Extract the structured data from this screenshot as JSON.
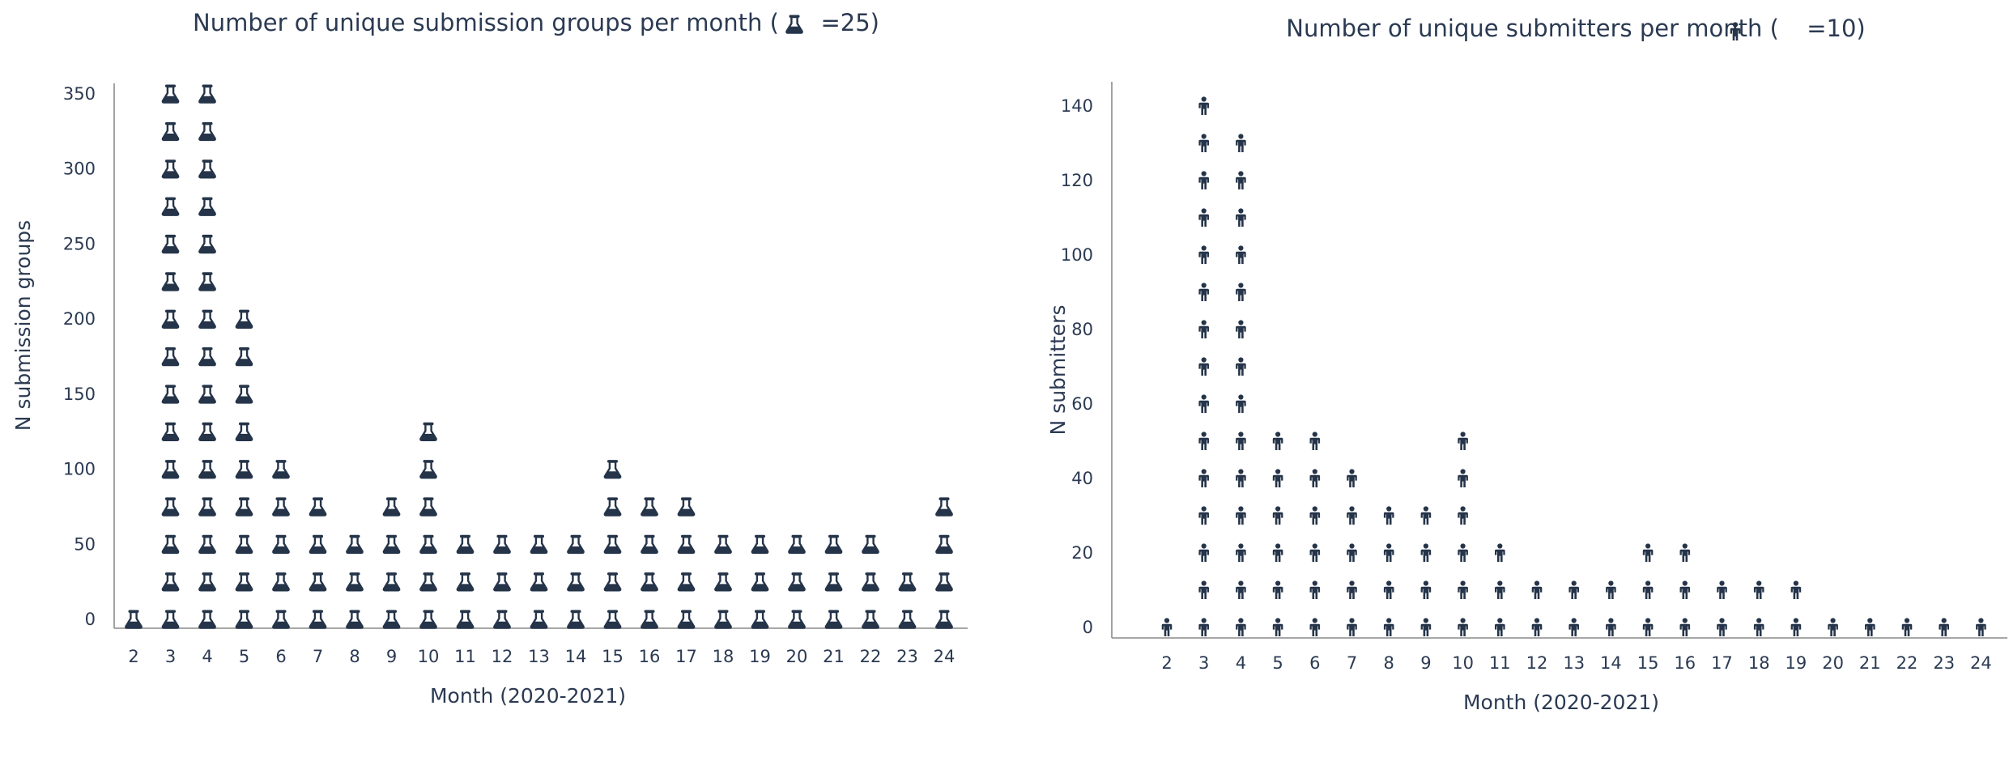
{
  "colors": {
    "icon": "#253449",
    "text": "#2b3a52",
    "axis": "#8a8a8a"
  },
  "chart_data": [
    {
      "type": "pictogram",
      "icon": "flask-icon",
      "title_prefix": "Number of unique submission groups per month (",
      "title_suffix": "=25)",
      "units_per_icon": 25,
      "xlabel": "Month (2020-2021)",
      "ylabel": "N submission groups",
      "ylim": [
        0,
        350
      ],
      "yticks": [
        0,
        50,
        100,
        150,
        200,
        250,
        300,
        350
      ],
      "categories": [
        "2",
        "3",
        "4",
        "5",
        "6",
        "7",
        "8",
        "9",
        "10",
        "11",
        "12",
        "13",
        "14",
        "15",
        "16",
        "17",
        "18",
        "19",
        "20",
        "21",
        "22",
        "23",
        "24"
      ],
      "icon_counts": [
        1,
        15,
        15,
        9,
        5,
        4,
        3,
        4,
        6,
        3,
        3,
        3,
        3,
        5,
        4,
        4,
        3,
        3,
        3,
        3,
        3,
        2,
        4
      ],
      "grid": false,
      "legend": "none"
    },
    {
      "type": "pictogram",
      "icon": "person-icon",
      "title_prefix": "Number of unique submitters per month (",
      "title_suffix": "=10)",
      "units_per_icon": 10,
      "xlabel": "Month (2020-2021)",
      "ylabel": "N submitters",
      "ylim": [
        0,
        140
      ],
      "yticks": [
        0,
        20,
        40,
        60,
        80,
        100,
        120,
        140
      ],
      "categories": [
        "2",
        "3",
        "4",
        "5",
        "6",
        "7",
        "8",
        "9",
        "10",
        "11",
        "12",
        "13",
        "14",
        "15",
        "16",
        "17",
        "18",
        "19",
        "20",
        "21",
        "22",
        "23",
        "24"
      ],
      "icon_counts": [
        1,
        15,
        14,
        6,
        6,
        5,
        4,
        4,
        6,
        3,
        2,
        2,
        2,
        3,
        3,
        2,
        2,
        2,
        1,
        1,
        1,
        1,
        1
      ],
      "grid": false,
      "legend": "none"
    }
  ]
}
